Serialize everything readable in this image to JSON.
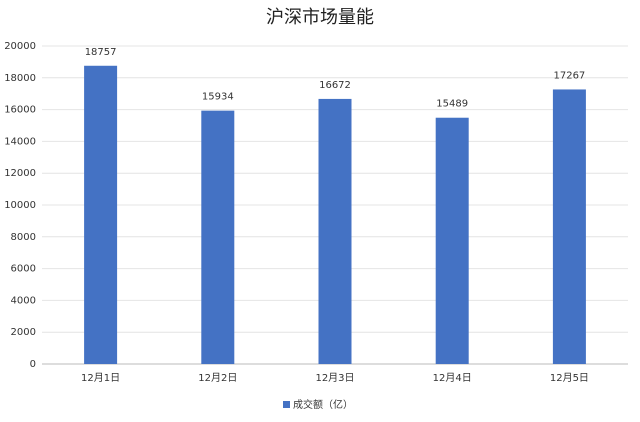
{
  "chart_data": {
    "type": "bar",
    "title": "沪深市场量能",
    "categories": [
      "12月1日",
      "12月2日",
      "12月3日",
      "12月4日",
      "12月5日"
    ],
    "series": [
      {
        "name": "成交额（亿）",
        "color": "#4472c4",
        "values": [
          18757,
          15934,
          16672,
          15489,
          17267
        ]
      }
    ],
    "ylim": [
      0,
      20000
    ],
    "yticks": [
      0,
      2000,
      4000,
      6000,
      8000,
      10000,
      12000,
      14000,
      16000,
      18000,
      20000
    ],
    "grid": true,
    "legend": "bottom"
  }
}
